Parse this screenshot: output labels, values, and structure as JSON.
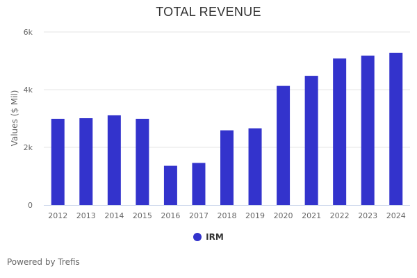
{
  "chart_data": {
    "type": "bar",
    "title": "TOTAL REVENUE",
    "xlabel": "",
    "ylabel": "Values ($ Mil)",
    "categories": [
      "2012",
      "2013",
      "2014",
      "2015",
      "2016",
      "2017",
      "2018",
      "2019",
      "2020",
      "2021",
      "2022",
      "2023",
      "2024"
    ],
    "series": [
      {
        "name": "IRM",
        "color": "#3333cc",
        "values": [
          2990,
          3010,
          3110,
          2990,
          1360,
          1460,
          2590,
          2660,
          4130,
          4480,
          5080,
          5180,
          5280
        ]
      }
    ],
    "ylim": [
      0,
      6000
    ],
    "yticks": [
      0,
      2000,
      4000,
      6000
    ],
    "ytick_labels": [
      "0",
      "2k",
      "4k",
      "6k"
    ],
    "grid": true,
    "legend_position": "bottom-center"
  },
  "credit": "Powered by Trefis"
}
